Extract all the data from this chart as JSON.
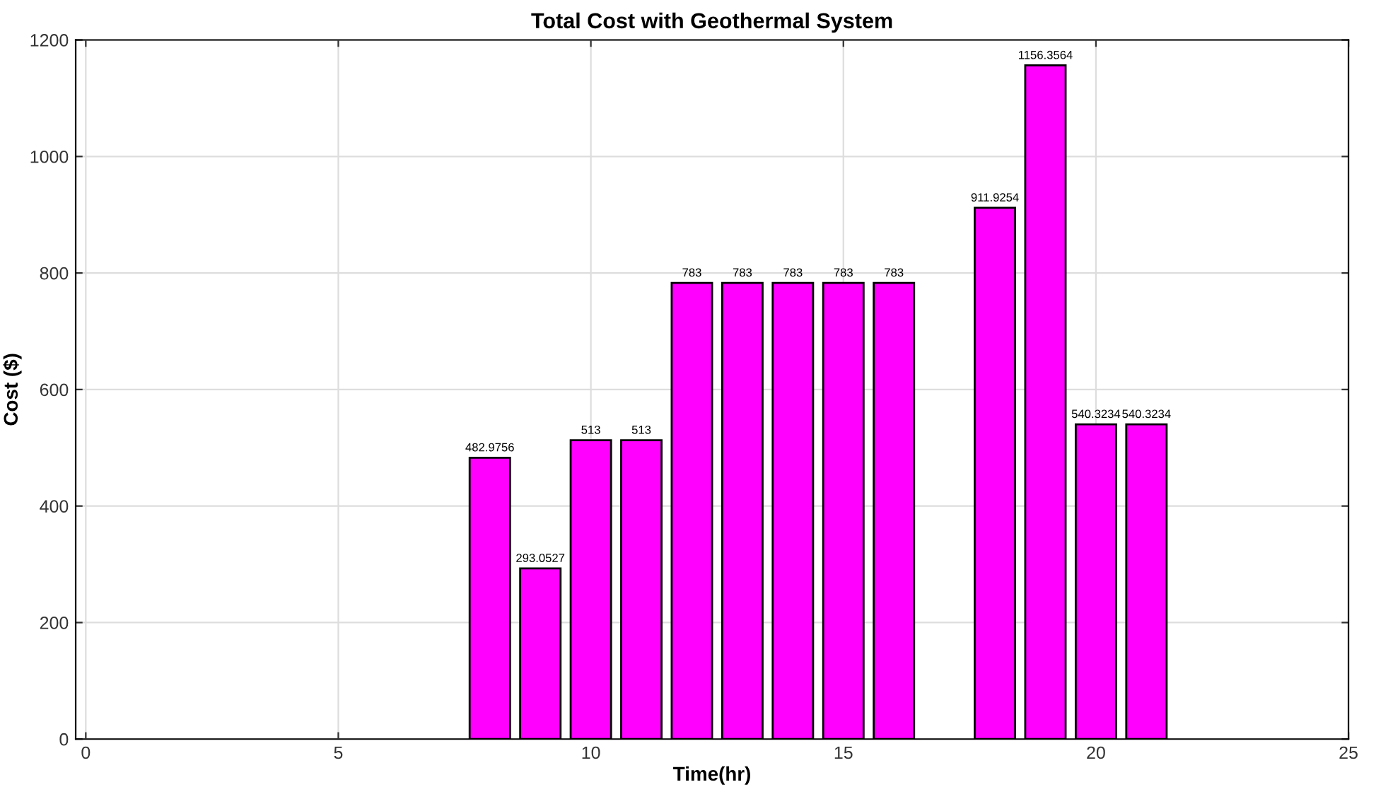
{
  "chart_data": {
    "type": "bar",
    "title": "Total Cost with Geothermal System",
    "xlabel": "Time(hr)",
    "ylabel": "Cost ($)",
    "x": [
      8,
      9,
      10,
      11,
      12,
      13,
      14,
      15,
      16,
      18,
      19,
      20,
      21
    ],
    "values": [
      482.9756,
      293.0527,
      513,
      513,
      783,
      783,
      783,
      783,
      783,
      911.9254,
      1156.3564,
      540.3234,
      540.3234
    ],
    "color": "#ff00ff",
    "xlim": [
      -0.2,
      25
    ],
    "xticks": [
      0,
      5,
      10,
      15,
      20,
      25
    ],
    "ylim": [
      0,
      1200
    ],
    "yticks": [
      0,
      200,
      400,
      600,
      800,
      1000,
      1200
    ],
    "data_labels": true,
    "grid": true,
    "legend": false
  }
}
